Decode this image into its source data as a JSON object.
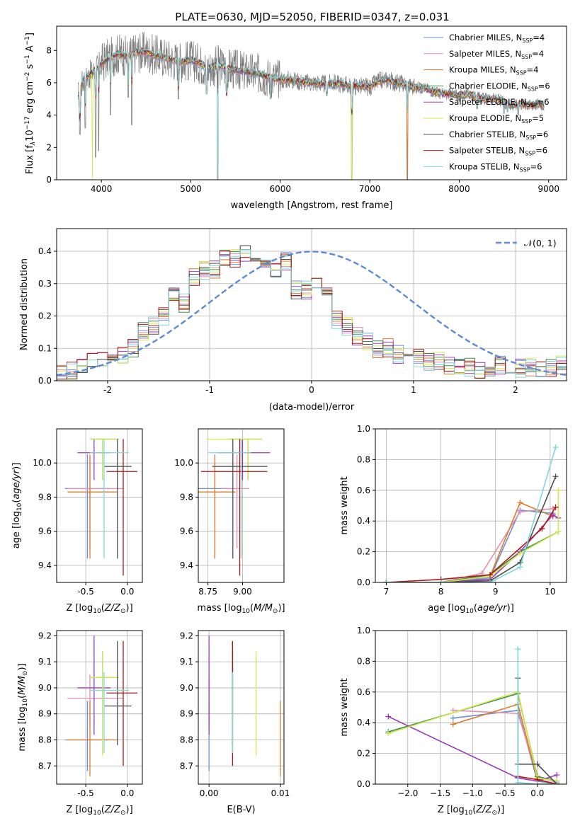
{
  "figure": {
    "title": "PLATE=0630, MJD=52050, FIBERID=0347, z=0.031"
  },
  "colors": {
    "Chabrier MILES": "#6b8fd6",
    "Salpeter MILES": "#e58fb0",
    "Kroupa MILES": "#e07a2a",
    "Chabrier ELODIE": "#3a8f4a",
    "Salpeter ELODIE": "#9a3ab8",
    "Kroupa ELODIE": "#d4e84a",
    "Chabrier STELIB": "#505050",
    "Salpeter STELIB": "#b01818",
    "Kroupa STELIB": "#7fd8dc",
    "data": "#808080",
    "normal": "#5b8ad6"
  },
  "chart_data": [
    {
      "id": "spectrum",
      "type": "line",
      "title": "PLATE=0630, MJD=52050, FIBERID=0347, z=0.031",
      "xlabel": "wavelength [Angstrom, rest frame]",
      "ylabel_parts": [
        "Flux [f",
        "λ",
        "10",
        "−17",
        " erg cm",
        "−2",
        " s",
        "−1",
        " A",
        "−1",
        "]"
      ],
      "xlim": [
        3500,
        9200
      ],
      "ylim": [
        0,
        9.5
      ],
      "xticks": [
        4000,
        5000,
        6000,
        7000,
        8000,
        9000
      ],
      "yticks": [
        0,
        2,
        4,
        6,
        8
      ],
      "continuum": [
        [
          3740,
          5.2
        ],
        [
          3800,
          6.2
        ],
        [
          3900,
          6.6
        ],
        [
          4000,
          7.2
        ],
        [
          4100,
          7.6
        ],
        [
          4200,
          7.8
        ],
        [
          4300,
          7.6
        ],
        [
          4400,
          7.9
        ],
        [
          4500,
          7.9
        ],
        [
          4600,
          7.7
        ],
        [
          4700,
          7.6
        ],
        [
          4800,
          7.4
        ],
        [
          4900,
          7.3
        ],
        [
          5000,
          7.4
        ],
        [
          5100,
          7.2
        ],
        [
          5200,
          6.9
        ],
        [
          5300,
          7.1
        ],
        [
          5400,
          6.9
        ],
        [
          5500,
          6.8
        ],
        [
          5600,
          6.7
        ],
        [
          5700,
          6.6
        ],
        [
          5800,
          6.5
        ],
        [
          5900,
          6.3
        ],
        [
          6000,
          6.2
        ],
        [
          6100,
          6.2
        ],
        [
          6200,
          6.1
        ],
        [
          6300,
          6.0
        ],
        [
          6400,
          6.0
        ],
        [
          6500,
          5.9
        ],
        [
          6600,
          6.0
        ],
        [
          6700,
          5.9
        ],
        [
          6800,
          5.8
        ],
        [
          6900,
          5.8
        ],
        [
          7000,
          5.7
        ],
        [
          7100,
          6.1
        ],
        [
          7200,
          6.2
        ],
        [
          7300,
          6.0
        ],
        [
          7400,
          5.9
        ],
        [
          7500,
          5.7
        ],
        [
          7600,
          5.7
        ],
        [
          7700,
          5.5
        ],
        [
          7800,
          5.3
        ],
        [
          7900,
          5.3
        ],
        [
          8000,
          5.2
        ],
        [
          8100,
          5.3
        ],
        [
          8200,
          5.1
        ],
        [
          8300,
          5.0
        ],
        [
          8400,
          5.0
        ],
        [
          8500,
          4.8
        ],
        [
          8600,
          4.6
        ],
        [
          8700,
          4.7
        ],
        [
          8800,
          4.6
        ],
        [
          8900,
          4.7
        ],
        [
          8950,
          4.6
        ]
      ],
      "noise_amplitude": 1.3,
      "dips": [
        [
          3760,
          2.8
        ],
        [
          3820,
          3.2
        ],
        [
          3935,
          1.4
        ],
        [
          3970,
          1.8
        ],
        [
          4102,
          4.0
        ],
        [
          4300,
          5.1
        ],
        [
          4340,
          3.4
        ],
        [
          4861,
          5.0
        ],
        [
          5175,
          5.3
        ],
        [
          5300,
          0.0
        ],
        [
          5400,
          5.2
        ],
        [
          5890,
          5.0
        ],
        [
          6520,
          5.2
        ],
        [
          6800,
          0.0
        ],
        [
          7420,
          0.0
        ],
        [
          8200,
          4.4
        ],
        [
          8500,
          4.1
        ],
        [
          8540,
          4.2
        ],
        [
          8660,
          4.0
        ]
      ]
    },
    {
      "id": "residuals",
      "type": "bar",
      "xlabel": "(data-model)/error",
      "ylabel": "Normed distribution",
      "xlim": [
        -2.5,
        2.5
      ],
      "ylim": [
        0,
        0.47
      ],
      "xticks": [
        -2,
        -1,
        0,
        1,
        2
      ],
      "yticks": [
        0.0,
        0.1,
        0.2,
        0.3,
        0.4
      ],
      "bin_width": 0.1,
      "bin_start": -2.5,
      "histogram_centers": [
        0.02,
        0.02,
        0.03,
        0.06,
        0.05,
        0.06,
        0.06,
        0.06,
        0.07,
        0.07,
        0.08,
        0.08,
        0.08,
        0.09,
        0.1,
        0.12,
        0.15,
        0.18,
        0.17,
        0.14,
        0.2,
        0.24,
        0.27,
        0.25,
        0.24,
        0.29,
        0.32,
        0.31,
        0.34,
        0.33,
        0.34,
        0.36,
        0.38,
        0.37,
        0.38,
        0.38,
        0.39,
        0.38,
        0.37,
        0.36,
        0.37,
        0.34,
        0.35,
        0.34,
        0.37,
        0.31,
        0.28,
        0.27,
        0.28,
        0.3,
        0.29,
        0.27,
        0.26,
        0.25,
        0.19,
        0.19,
        0.17,
        0.16,
        0.14,
        0.14,
        0.12,
        0.12,
        0.1,
        0.09,
        0.1,
        0.1,
        0.08,
        0.08,
        0.08,
        0.07,
        0.07,
        0.07,
        0.06,
        0.06,
        0.06,
        0.05,
        0.05,
        0.05,
        0.05,
        0.04,
        0.04,
        0.04,
        0.03,
        0.04,
        0.04,
        0.04,
        0.05,
        0.04,
        0.04,
        0.04,
        0.04,
        0.04,
        0.04,
        0.04,
        0.03,
        0.04,
        0.04,
        0.04,
        0.05,
        0.04
      ],
      "legend": "𝒩(0, 1)",
      "legend_position": "top-right"
    },
    {
      "id": "age-vs-Z",
      "type": "errorbar",
      "xlabel": "Z [log10(Z/Z⊙)]",
      "ylabel": "age  [log10(age/yr)]",
      "xlim": [
        -0.85,
        0.18
      ],
      "ylim": [
        9.3,
        10.2
      ],
      "xticks": [
        -0.5,
        0.0
      ],
      "yticks": [
        9.4,
        9.6,
        9.8,
        10.0
      ]
    },
    {
      "id": "age-vs-mass",
      "type": "errorbar",
      "xlabel": "mass [log10(M/M⊙)]",
      "xlim": [
        8.68,
        9.3
      ],
      "ylim": [
        9.3,
        10.2
      ],
      "xticks": [
        8.75,
        9.0
      ],
      "yticks": [
        9.4,
        9.6,
        9.8,
        10.0
      ]
    },
    {
      "id": "mass-weight-vs-age",
      "type": "line",
      "xlabel": "age  [log10(age/yr)]",
      "ylabel": "mass weight",
      "xlim": [
        6.8,
        10.3
      ],
      "ylim": [
        0,
        1.0
      ],
      "xticks": [
        7,
        8,
        9,
        10
      ],
      "yticks": [
        0.0,
        0.2,
        0.4,
        0.6,
        0.8,
        1.0
      ]
    },
    {
      "id": "mass-vs-Z",
      "type": "errorbar",
      "xlabel": "Z [log10(Z/Z⊙)]",
      "ylabel": "mass [log10(M/M⊙)]",
      "xlim": [
        -0.85,
        0.18
      ],
      "ylim": [
        8.63,
        9.22
      ],
      "xticks": [
        -0.5,
        0.0
      ],
      "yticks": [
        8.7,
        8.8,
        8.9,
        9.0,
        9.1,
        9.2
      ]
    },
    {
      "id": "mass-vs-EBV",
      "type": "errorbar",
      "xlabel": "E(B-V)",
      "xlim": [
        -0.0015,
        0.0105
      ],
      "ylim": [
        8.63,
        9.22
      ],
      "xticks": [
        0.0,
        0.01
      ],
      "yticks": [
        8.7,
        8.8,
        8.9,
        9.0,
        9.1,
        9.2
      ]
    },
    {
      "id": "mass-weight-vs-Z",
      "type": "line",
      "xlabel": "Z [log10(Z/Z⊙)]",
      "ylabel": "mass weight",
      "xlim": [
        -2.5,
        0.45
      ],
      "ylim": [
        0,
        1.0
      ],
      "xticks": [
        -2.0,
        -1.5,
        -1.0,
        -0.5,
        0.0
      ],
      "yticks": [
        0.0,
        0.2,
        0.4,
        0.6,
        0.8,
        1.0
      ]
    }
  ],
  "series": [
    {
      "key": "Chabrier MILES",
      "label": "Chabrier MILES, N",
      "nssp": "=4",
      "age": 9.85,
      "age_lo": 9.44,
      "age_hi": 10.05,
      "Z": -0.48,
      "Z_lo": -0.75,
      "Z_hi": -0.2,
      "mass": 8.8,
      "mass_lo": 8.68,
      "mass_hi": 8.95,
      "ebv": 0.0,
      "weights_age": [
        [
          7.0,
          0.0
        ],
        [
          8.0,
          0.0
        ],
        [
          8.9,
          0.03
        ],
        [
          9.45,
          0.47
        ],
        [
          10.05,
          0.45
        ]
      ],
      "weights_Z": [
        [
          -1.3,
          0.43
        ],
        [
          -0.3,
          0.48
        ],
        [
          0.0,
          0.02
        ],
        [
          0.3,
          0.0
        ]
      ]
    },
    {
      "key": "Salpeter MILES",
      "label": "Salpeter MILES, N",
      "nssp": "=4",
      "age": 9.85,
      "age_lo": 9.5,
      "age_hi": 10.05,
      "Z": -0.45,
      "Z_lo": -0.72,
      "Z_hi": -0.05,
      "mass": 8.96,
      "mass_lo": 8.85,
      "mass_hi": 9.05,
      "ebv": 0.0,
      "weights_age": [
        [
          7.0,
          0.0
        ],
        [
          8.0,
          0.0
        ],
        [
          8.75,
          0.06
        ],
        [
          9.45,
          0.46
        ],
        [
          10.05,
          0.48
        ]
      ],
      "weights_Z": [
        [
          -1.3,
          0.48
        ],
        [
          -0.3,
          0.46
        ],
        [
          0.0,
          0.05
        ],
        [
          0.3,
          0.01
        ]
      ]
    },
    {
      "key": "Kroupa MILES",
      "label": "Kroupa MILES, N",
      "nssp": "=4",
      "age": 9.83,
      "age_lo": 9.44,
      "age_hi": 10.04,
      "Z": -0.45,
      "Z_lo": -0.72,
      "Z_hi": -0.12,
      "mass": 8.8,
      "mass_lo": 8.66,
      "mass_hi": 8.95,
      "ebv": 0.01,
      "weights_age": [
        [
          7.0,
          0.0
        ],
        [
          8.0,
          0.0
        ],
        [
          8.9,
          0.04
        ],
        [
          9.45,
          0.52
        ],
        [
          10.05,
          0.43
        ]
      ],
      "weights_Z": [
        [
          -1.3,
          0.39
        ],
        [
          -0.3,
          0.52
        ],
        [
          0.0,
          0.03
        ],
        [
          0.3,
          0.0
        ]
      ]
    },
    {
      "key": "Chabrier ELODIE",
      "label": "Chabrier ELODIE, N",
      "nssp": "=6",
      "age": 10.14,
      "age_lo": 9.9,
      "age_hi": 10.14,
      "Z": -0.3,
      "Z_lo": -0.45,
      "Z_hi": -0.1,
      "mass": 9.04,
      "mass_lo": 8.9,
      "mass_hi": 9.14,
      "ebv": 0.0033,
      "weights_age": [
        [
          7.0,
          0.0
        ],
        [
          8.0,
          0.0
        ],
        [
          8.9,
          0.05
        ],
        [
          9.45,
          0.2
        ],
        [
          10.15,
          0.33
        ]
      ],
      "weights_Z": [
        [
          -2.3,
          0.34
        ],
        [
          -0.3,
          0.59
        ],
        [
          0.0,
          0.05
        ],
        [
          0.3,
          0.02
        ]
      ]
    },
    {
      "key": "Salpeter ELODIE",
      "label": "Salpeter ELODIE, N",
      "nssp": "=6",
      "age": 10.06,
      "age_lo": 9.9,
      "age_hi": 10.14,
      "Z": -0.4,
      "Z_lo": -0.6,
      "Z_hi": -0.2,
      "mass": 9.0,
      "mass_lo": 8.82,
      "mass_hi": 9.2,
      "ebv": 0.0,
      "weights_age": [
        [
          7.0,
          0.0
        ],
        [
          8.0,
          0.0
        ],
        [
          8.9,
          0.02
        ],
        [
          9.45,
          0.2
        ],
        [
          10.05,
          0.44
        ],
        [
          10.15,
          0.42
        ]
      ],
      "weights_Z": [
        [
          -2.3,
          0.44
        ],
        [
          -0.3,
          0.04
        ],
        [
          0.0,
          0.02
        ],
        [
          0.3,
          0.06
        ]
      ]
    },
    {
      "key": "Kroupa ELODIE",
      "label": "Kroupa ELODIE, N",
      "nssp": "=5",
      "age": 10.14,
      "age_lo": 9.9,
      "age_hi": 10.14,
      "Z": -0.3,
      "Z_lo": -0.45,
      "Z_hi": -0.1,
      "mass": 9.04,
      "mass_lo": 8.74,
      "mass_hi": 9.14,
      "ebv": 0.0066,
      "weights_age": [
        [
          7.0,
          0.0
        ],
        [
          8.0,
          0.0
        ],
        [
          8.9,
          0.04
        ],
        [
          9.45,
          0.19
        ],
        [
          10.15,
          0.33
        ],
        [
          10.15,
          0.6
        ]
      ],
      "weights_Z": [
        [
          -2.3,
          0.33
        ],
        [
          -0.3,
          0.6
        ],
        [
          0.0,
          0.04
        ],
        [
          0.3,
          0.02
        ]
      ]
    },
    {
      "key": "Chabrier STELIB",
      "label": "Chabrier STELIB, N",
      "nssp": "=6",
      "age": 9.98,
      "age_lo": 9.44,
      "age_hi": 10.14,
      "Z": -0.12,
      "Z_lo": -0.28,
      "Z_hi": 0.05,
      "mass": 8.93,
      "mass_lo": 8.78,
      "mass_hi": 9.18,
      "ebv": 0.0033,
      "weights_age": [
        [
          7.0,
          0.0
        ],
        [
          8.0,
          0.0
        ],
        [
          8.9,
          0.01
        ],
        [
          9.45,
          0.13
        ],
        [
          10.1,
          0.69
        ]
      ],
      "weights_Z": [
        [
          -0.3,
          0.69
        ],
        [
          -0.3,
          0.13
        ],
        [
          0.0,
          0.13
        ],
        [
          0.3,
          0.0
        ]
      ]
    },
    {
      "key": "Salpeter STELIB",
      "label": "Salpeter STELIB, N",
      "nssp": "=6",
      "age": 9.95,
      "age_lo": 9.34,
      "age_hi": 10.14,
      "Z": -0.05,
      "Z_lo": -0.25,
      "Z_hi": 0.12,
      "mass": 8.98,
      "mass_lo": 8.7,
      "mass_hi": 9.18,
      "ebv": 0.0033,
      "weights_age": [
        [
          7.0,
          0.0
        ],
        [
          8.0,
          0.02
        ],
        [
          8.9,
          0.05
        ],
        [
          9.85,
          0.35
        ],
        [
          10.1,
          0.49
        ]
      ],
      "weights_Z": [
        [
          -0.3,
          0.05
        ],
        [
          0.0,
          0.03
        ],
        [
          0.3,
          0.0
        ]
      ]
    },
    {
      "key": "Kroupa STELIB",
      "label": "Kroupa STELIB, N",
      "nssp": "=6",
      "age": 10.06,
      "age_lo": 9.44,
      "age_hi": 10.14,
      "Z": -0.28,
      "Z_lo": -0.45,
      "Z_hi": 0.02,
      "mass": 8.99,
      "mass_lo": 8.75,
      "mass_hi": 9.06,
      "ebv": 0.0033,
      "weights_age": [
        [
          7.0,
          0.0
        ],
        [
          8.0,
          0.0
        ],
        [
          8.9,
          0.0
        ],
        [
          9.45,
          0.1
        ],
        [
          10.1,
          0.88
        ]
      ],
      "weights_Z": [
        [
          -0.3,
          0.88
        ],
        [
          -0.3,
          0.01
        ],
        [
          0.0,
          0.0
        ],
        [
          0.3,
          0.0
        ]
      ]
    }
  ]
}
